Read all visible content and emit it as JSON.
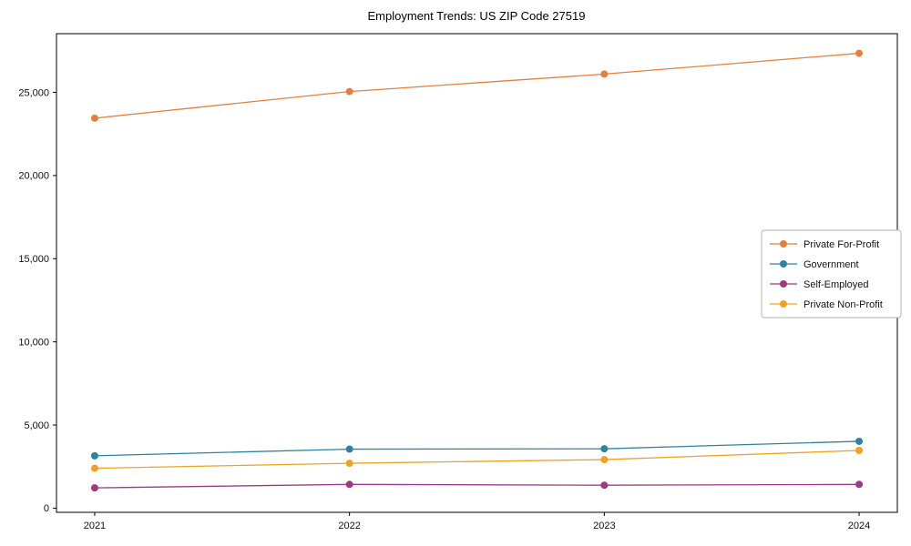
{
  "title": "Employment Trends: US ZIP Code 27519",
  "chart_data": {
    "type": "line",
    "title": "Employment Trends: US ZIP Code 27519",
    "xlabel": "",
    "ylabel": "",
    "x": [
      2021,
      2022,
      2023,
      2024
    ],
    "xtick_labels": [
      "2021",
      "2022",
      "2023",
      "2024"
    ],
    "yticks": [
      0,
      5000,
      10000,
      15000,
      20000,
      25000
    ],
    "ytick_labels": [
      "0",
      "5,000",
      "10,000",
      "15,000",
      "20,000",
      "25,000"
    ],
    "xlim": [
      2020.85,
      2024.15
    ],
    "ylim": [
      -250,
      28530
    ],
    "grid": false,
    "legend_position": "center right",
    "marker": "circle",
    "series": [
      {
        "name": "Private For-Profit",
        "color": "#e0813f",
        "values": [
          23450,
          25050,
          26100,
          27350
        ]
      },
      {
        "name": "Government",
        "color": "#31829c",
        "values": [
          3150,
          3550,
          3570,
          4020
        ]
      },
      {
        "name": "Self-Employed",
        "color": "#9c3b83",
        "values": [
          1220,
          1430,
          1380,
          1430
        ]
      },
      {
        "name": "Private Non-Profit",
        "color": "#eca223",
        "values": [
          2400,
          2700,
          2920,
          3470
        ]
      }
    ],
    "axis_color": "#000000",
    "tick_label_color": "#111111",
    "legend_border_color": "#b5b5b5",
    "legend_bg_color": "#ffffff"
  }
}
